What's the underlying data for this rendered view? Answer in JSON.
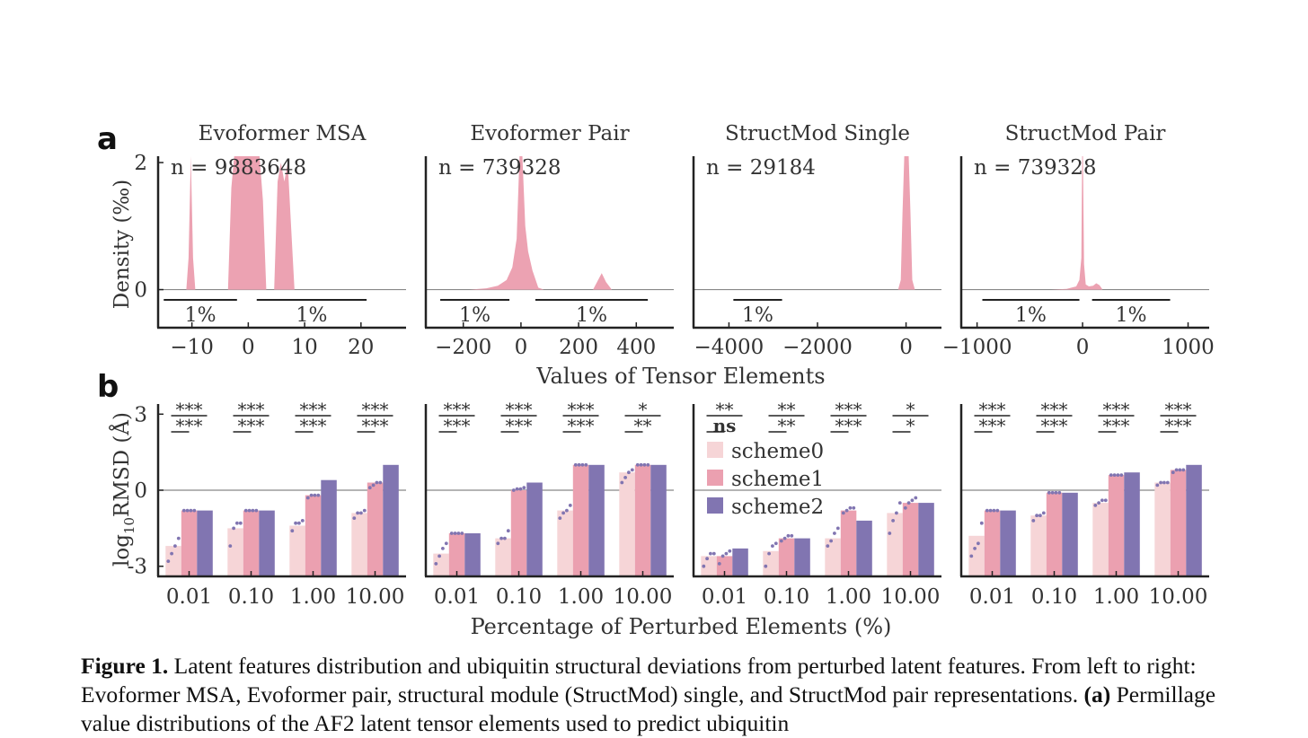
{
  "panel_labels": {
    "a": "a",
    "b": "b"
  },
  "shared_labels": {
    "a_xlabel": "Values of Tensor Elements",
    "a_ylabel": "Density (‰)",
    "b_xlabel": "Percentage of Perturbed Elements (%)",
    "b_ylabel_pre": "log",
    "b_ylabel_sub": "10",
    "b_ylabel_post": "RMSD (Å)"
  },
  "legend": [
    "scheme0",
    "scheme1",
    "scheme2"
  ],
  "colors": {
    "scheme0": "#f6d5d7",
    "scheme1": "#eba0b0",
    "scheme2": "#8175b1",
    "density": "#eca2b2",
    "axis": "#222222",
    "zero_line": "#888888",
    "dots": "#8175b1"
  },
  "caption": {
    "fig_label": "Figure 1.",
    "text1": " Latent features distribution and ubiquitin structural deviations from perturbed latent features. From left to right: Evoformer MSA, Evoformer pair, structural module (StructMod) single, and StructMod pair representations. ",
    "panel_a": "(a)",
    "text2": " Permillage value distributions of the AF2 latent tensor elements used to predict ubiquitin"
  },
  "chart_data": [
    {
      "panel": "a",
      "type": "area",
      "title": "Evoformer MSA",
      "n_label": "n = 9883648",
      "xlabel": "",
      "ylabel": "Density (‰)",
      "xlim": [
        -16,
        28
      ],
      "ylim": [
        -0.6,
        2.1
      ],
      "xticks": [
        -10,
        0,
        10,
        20
      ],
      "xtick_labels": [
        "−10",
        "0",
        "10",
        "20"
      ],
      "yticks": [
        0,
        2
      ],
      "ytick_labels": [
        "0",
        "2"
      ],
      "density": {
        "x": [
          -11,
          -10.6,
          -10.2,
          -9.8,
          -9.4,
          -3.6,
          -3,
          -2.5,
          2,
          2.6,
          3.2,
          4.6,
          5.2,
          5.8,
          6.4,
          7,
          7.6,
          8.2
        ],
        "y": [
          0,
          0.5,
          2.1,
          0.5,
          0,
          0,
          1.6,
          2.1,
          2.1,
          1.4,
          0,
          0,
          1.7,
          2.0,
          1.7,
          2.0,
          1.0,
          0
        ]
      },
      "percentile_bars": [
        {
          "x": [
            -15,
            -2
          ],
          "label": "1%"
        },
        {
          "x": [
            1.5,
            21
          ],
          "label": "1%"
        }
      ]
    },
    {
      "panel": "a",
      "type": "area",
      "title": "Evoformer Pair",
      "n_label": "n = 739328",
      "xlabel": "",
      "ylabel": "",
      "xlim": [
        -330,
        530
      ],
      "ylim": [
        -0.6,
        2.1
      ],
      "xticks": [
        -200,
        0,
        200,
        400
      ],
      "xtick_labels": [
        "−200",
        "0",
        "200",
        "400"
      ],
      "yticks": [],
      "ytick_labels": [],
      "density": {
        "x": [
          -180,
          -120,
          -80,
          -50,
          -30,
          -15,
          -5,
          5,
          15,
          25,
          40,
          60,
          80,
          250,
          265,
          280,
          295,
          315
        ],
        "y": [
          0,
          0.02,
          0.06,
          0.15,
          0.35,
          0.8,
          2.1,
          2.1,
          1.0,
          0.6,
          0.3,
          0.03,
          0,
          0,
          0.13,
          0.26,
          0.12,
          0
        ]
      },
      "percentile_bars": [
        {
          "x": [
            -280,
            -40
          ],
          "label": "1%"
        },
        {
          "x": [
            50,
            440
          ],
          "label": "1%"
        }
      ]
    },
    {
      "panel": "a",
      "type": "area",
      "title": "StructMod Single",
      "n_label": "n = 29184",
      "xlabel": "",
      "ylabel": "",
      "xlim": [
        -4800,
        800
      ],
      "ylim": [
        -0.6,
        2.1
      ],
      "xticks": [
        -4000,
        -2000,
        0
      ],
      "xtick_labels": [
        "−4000",
        "−2000",
        "0"
      ],
      "yticks": [],
      "ytick_labels": [],
      "density": {
        "x": [
          -180,
          -120,
          -80,
          -40,
          60,
          100,
          140,
          200
        ],
        "y": [
          0,
          0.15,
          1.2,
          2.1,
          2.1,
          1.2,
          0.15,
          0
        ]
      },
      "percentile_bars": [
        {
          "x": [
            -3900,
            -2800
          ],
          "label": "1%"
        }
      ]
    },
    {
      "panel": "a",
      "type": "area",
      "title": "StructMod Pair",
      "n_label": "n = 739328",
      "xlabel": "",
      "ylabel": "",
      "xlim": [
        -1150,
        1200
      ],
      "ylim": [
        -0.6,
        2.1
      ],
      "xticks": [
        -1000,
        0,
        1000
      ],
      "xtick_labels": [
        "−1000",
        "0",
        "1000"
      ],
      "yticks": [],
      "ytick_labels": [],
      "density": {
        "x": [
          -300,
          -150,
          -60,
          -30,
          -12,
          -4,
          4,
          14,
          30,
          60,
          100,
          130,
          160,
          190
        ],
        "y": [
          0,
          0.01,
          0.05,
          0.15,
          0.5,
          2.1,
          2.1,
          0.4,
          0.08,
          0.05,
          0.06,
          0.1,
          0.07,
          0
        ]
      },
      "percentile_bars": [
        {
          "x": [
            -950,
            -30
          ],
          "label": "1%"
        },
        {
          "x": [
            90,
            830
          ],
          "label": "1%"
        }
      ]
    },
    {
      "panel": "b",
      "type": "bar",
      "categories": [
        "0.01",
        "0.10",
        "1.00",
        "10.00"
      ],
      "ylim": [
        -3.4,
        3.4
      ],
      "yticks": [
        -3,
        0,
        3
      ],
      "ytick_labels": [
        "-3",
        "0",
        "3"
      ],
      "series": [
        {
          "name": "scheme0",
          "values": [
            -2.2,
            -1.5,
            -1.4,
            -0.9
          ],
          "points": [
            [
              -2.8,
              -2.5,
              -2.2,
              -1.9
            ],
            [
              -2.2,
              -1.5,
              -1.3,
              -1.3
            ],
            [
              -1.6,
              -1.3,
              -1.3,
              -1.2
            ],
            [
              -1.1,
              -0.9,
              -0.9,
              -0.8
            ]
          ]
        },
        {
          "name": "scheme1",
          "values": [
            -0.8,
            -0.8,
            -0.2,
            0.3
          ],
          "points": [
            [
              -0.8,
              -0.8,
              -0.8,
              -0.8
            ],
            [
              -0.8,
              -0.8,
              -0.8,
              -0.8
            ],
            [
              -0.3,
              -0.2,
              -0.2,
              -0.2
            ],
            [
              0.1,
              0.2,
              0.3,
              0.3
            ]
          ]
        },
        {
          "name": "scheme2",
          "values": [
            -0.8,
            -0.8,
            0.4,
            1.0
          ],
          "points": []
        }
      ],
      "significance": [
        [
          "***",
          "***"
        ],
        [
          "***",
          "***"
        ],
        [
          "***",
          "***"
        ],
        [
          "***",
          "***"
        ]
      ]
    },
    {
      "panel": "b",
      "type": "bar",
      "categories": [
        "0.01",
        "0.10",
        "1.00",
        "10.00"
      ],
      "ylim": [
        -3.4,
        3.4
      ],
      "yticks": [],
      "ytick_labels": [],
      "series": [
        {
          "name": "scheme0",
          "values": [
            -2.5,
            -1.9,
            -0.8,
            0.7
          ],
          "points": [
            [
              -2.9,
              -2.6,
              -2.3,
              -2.1
            ],
            [
              -2.1,
              -1.9,
              -1.9,
              -1.6
            ],
            [
              -1.1,
              -0.9,
              -0.8,
              -0.6
            ],
            [
              0.3,
              0.5,
              0.7,
              0.8
            ]
          ]
        },
        {
          "name": "scheme1",
          "values": [
            -1.7,
            0.0,
            1.0,
            1.0
          ],
          "points": [
            [
              -1.7,
              -1.7,
              -1.7,
              -1.7
            ],
            [
              0.0,
              0.05,
              0.05,
              0.1
            ],
            [
              1.0,
              1.0,
              1.0,
              1.0
            ],
            [
              1.0,
              1.0,
              1.0,
              1.0
            ]
          ]
        },
        {
          "name": "scheme2",
          "values": [
            -1.7,
            0.3,
            1.0,
            1.0
          ],
          "points": []
        }
      ],
      "significance": [
        [
          "***",
          "***"
        ],
        [
          "***",
          "***"
        ],
        [
          "***",
          "***"
        ],
        [
          "*",
          "**"
        ]
      ]
    },
    {
      "panel": "b",
      "type": "bar",
      "categories": [
        "0.01",
        "0.10",
        "1.00",
        "10.00"
      ],
      "ylim": [
        -3.4,
        3.4
      ],
      "yticks": [],
      "ytick_labels": [],
      "series": [
        {
          "name": "scheme0",
          "values": [
            -2.6,
            -2.4,
            -1.9,
            -0.9
          ],
          "points": [
            [
              -3.0,
              -2.7,
              -2.5,
              -2.5
            ],
            [
              -3.0,
              -2.5,
              -2.2,
              -2.1
            ],
            [
              -2.2,
              -2.0,
              -1.7,
              -1.5
            ],
            [
              -1.7,
              -1.2,
              -0.9,
              -0.5
            ]
          ]
        },
        {
          "name": "scheme1",
          "values": [
            -2.6,
            -1.9,
            -0.8,
            -0.5
          ],
          "points": [
            [
              -2.9,
              -2.6,
              -2.5,
              -2.4
            ],
            [
              -2.0,
              -1.9,
              -1.8,
              -1.8
            ],
            [
              -0.9,
              -0.8,
              -0.7,
              -0.7
            ],
            [
              -0.7,
              -0.5,
              -0.4,
              -0.3
            ]
          ]
        },
        {
          "name": "scheme2",
          "values": [
            -2.3,
            -1.9,
            -1.2,
            -0.5
          ],
          "points": []
        }
      ],
      "significance": [
        [
          "**",
          "ns"
        ],
        [
          "**",
          "**"
        ],
        [
          "***",
          "***"
        ],
        [
          "*",
          "*"
        ]
      ]
    },
    {
      "panel": "b",
      "type": "bar",
      "categories": [
        "0.01",
        "0.10",
        "1.00",
        "10.00"
      ],
      "ylim": [
        -3.4,
        3.4
      ],
      "yticks": [],
      "ytick_labels": [],
      "series": [
        {
          "name": "scheme0",
          "values": [
            -1.8,
            -1.0,
            -0.5,
            0.3
          ],
          "points": [
            [
              -2.6,
              -2.3,
              -2.1,
              -1.3
            ],
            [
              -1.2,
              -1.0,
              -1.0,
              -0.9
            ],
            [
              -0.6,
              -0.5,
              -0.4,
              -0.4
            ],
            [
              0.2,
              0.3,
              0.3,
              0.3
            ]
          ]
        },
        {
          "name": "scheme1",
          "values": [
            -0.8,
            -0.1,
            0.6,
            0.8
          ],
          "points": [
            [
              -0.8,
              -0.8,
              -0.8,
              -0.8
            ],
            [
              -0.1,
              -0.1,
              -0.1,
              -0.1
            ],
            [
              0.6,
              0.6,
              0.6,
              0.6
            ],
            [
              0.7,
              0.8,
              0.8,
              0.8
            ]
          ]
        },
        {
          "name": "scheme2",
          "values": [
            -0.8,
            -0.1,
            0.7,
            1.0
          ],
          "points": []
        }
      ],
      "significance": [
        [
          "***",
          "***"
        ],
        [
          "***",
          "***"
        ],
        [
          "***",
          "***"
        ],
        [
          "***",
          "***"
        ]
      ]
    }
  ]
}
